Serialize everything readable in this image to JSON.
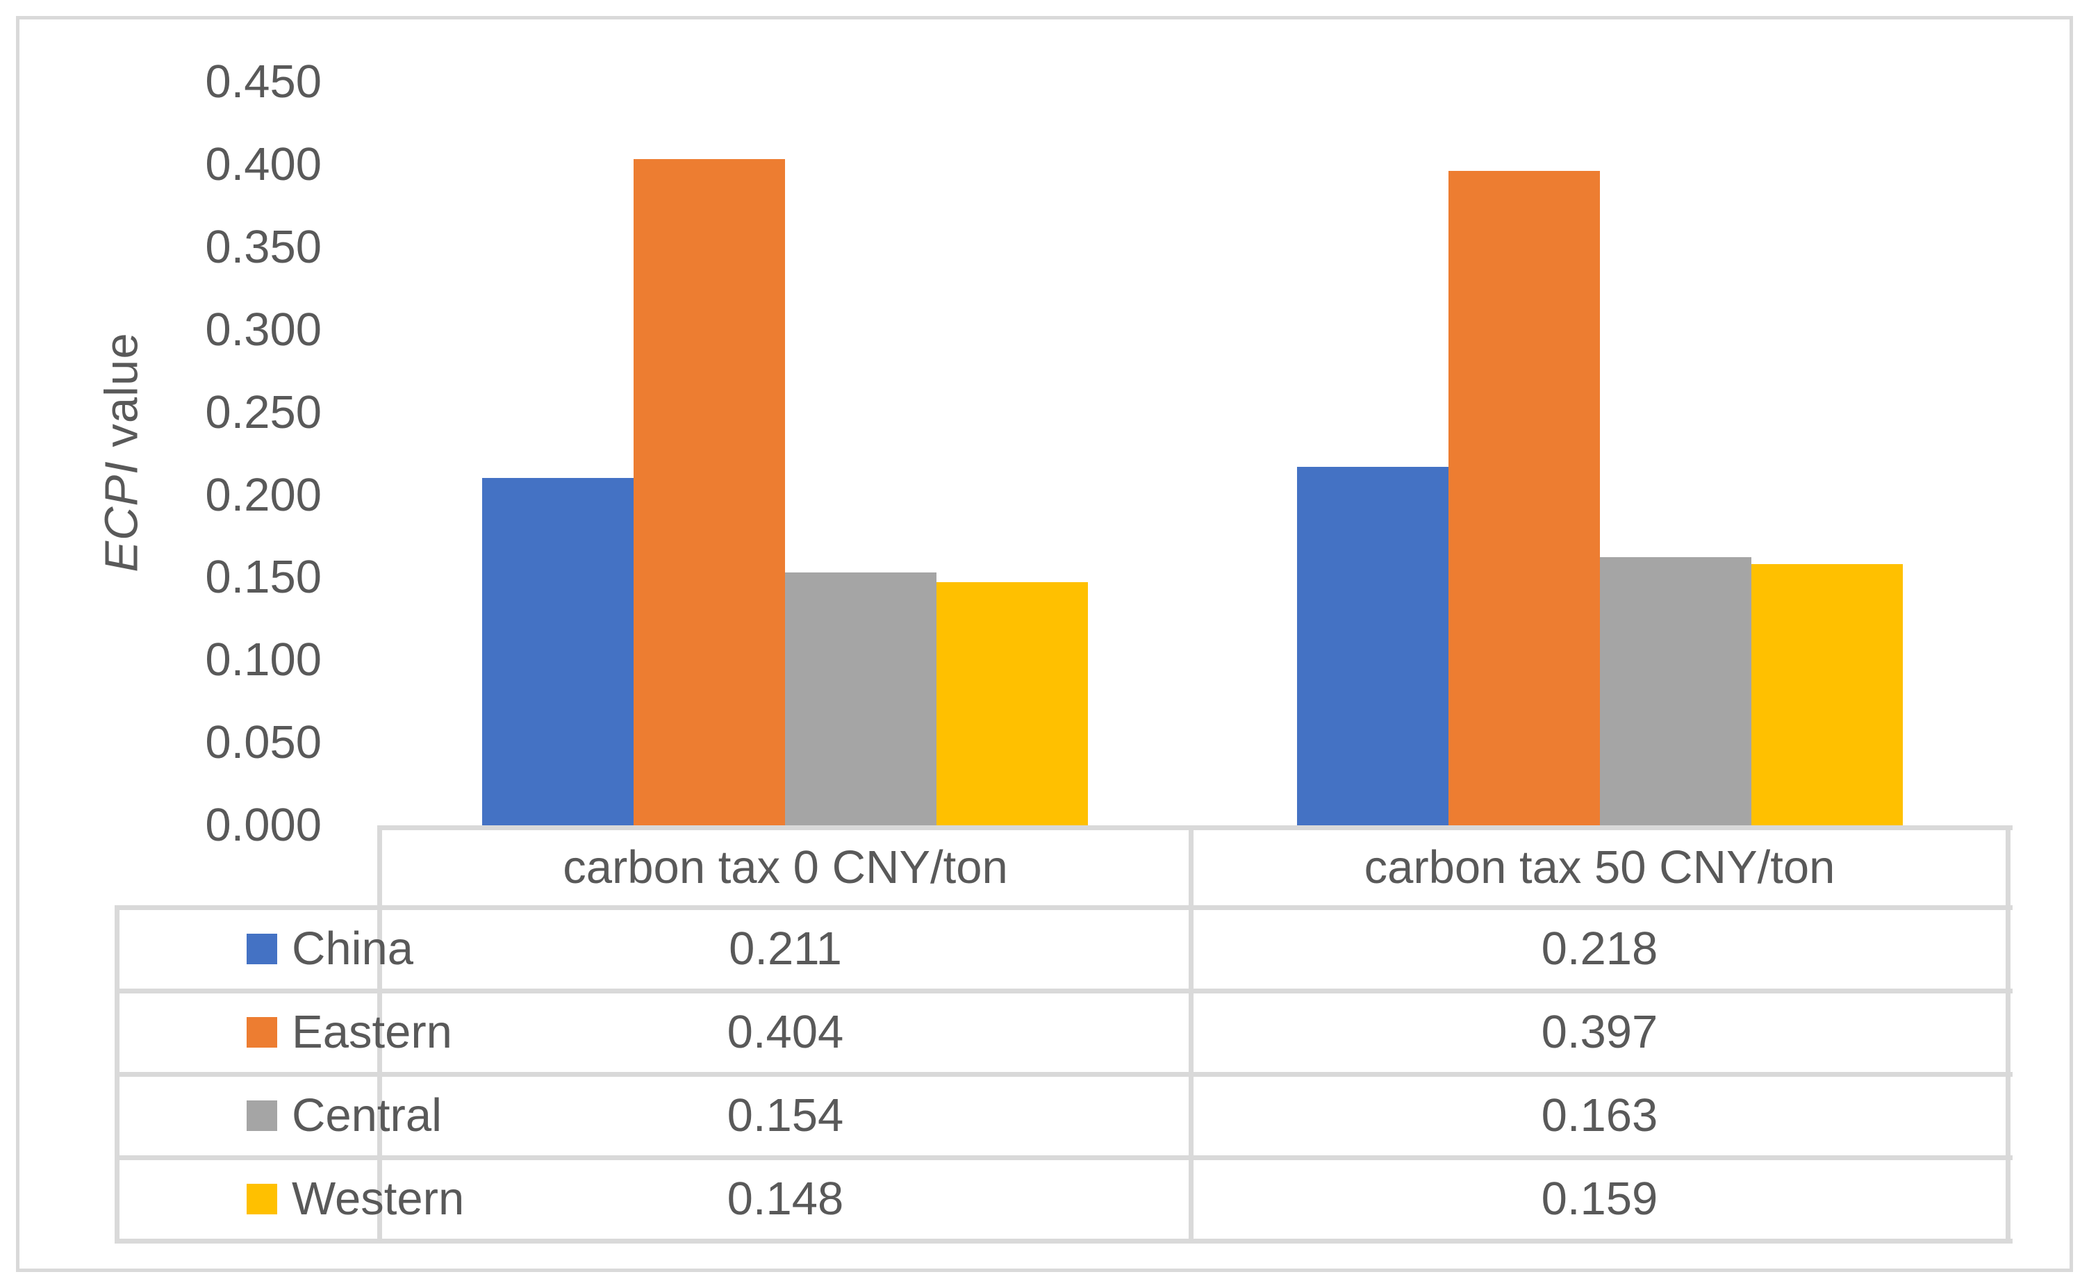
{
  "chart_data": {
    "type": "bar",
    "title": "",
    "ylabel_italic": "ECPI",
    "ylabel_rest": " value",
    "categories": [
      "carbon tax 0 CNY/ton",
      "carbon tax 50 CNY/ton"
    ],
    "series": [
      {
        "name": "China",
        "color": "#4472C4",
        "values": [
          0.211,
          0.218
        ]
      },
      {
        "name": "Eastern",
        "color": "#ED7D31",
        "values": [
          0.404,
          0.397
        ]
      },
      {
        "name": "Central",
        "color": "#A5A5A5",
        "values": [
          0.154,
          0.163
        ]
      },
      {
        "name": "Western",
        "color": "#FFC000",
        "values": [
          0.148,
          0.159
        ]
      }
    ],
    "yticks": [
      "0.450",
      "0.400",
      "0.350",
      "0.300",
      "0.250",
      "0.200",
      "0.150",
      "0.100",
      "0.050",
      "0.000"
    ],
    "ylim": [
      0,
      0.45
    ],
    "ytick_step": 0.05,
    "gridlines": false,
    "legend_position": "data-table-left-column",
    "table": {
      "column_headers": [
        "carbon tax 0 CNY/ton",
        "carbon tax 50 CNY/ton"
      ],
      "rows": [
        {
          "label": "China",
          "values": [
            "0.211",
            "0.218"
          ]
        },
        {
          "label": "Eastern",
          "values": [
            "0.404",
            "0.397"
          ]
        },
        {
          "label": "Central",
          "values": [
            "0.154",
            "0.163"
          ]
        },
        {
          "label": "Western",
          "values": [
            "0.148",
            "0.159"
          ]
        }
      ]
    },
    "colors": {
      "text": "#595959",
      "grid_border": "#D9D9D9",
      "background": "#FFFFFF"
    }
  }
}
